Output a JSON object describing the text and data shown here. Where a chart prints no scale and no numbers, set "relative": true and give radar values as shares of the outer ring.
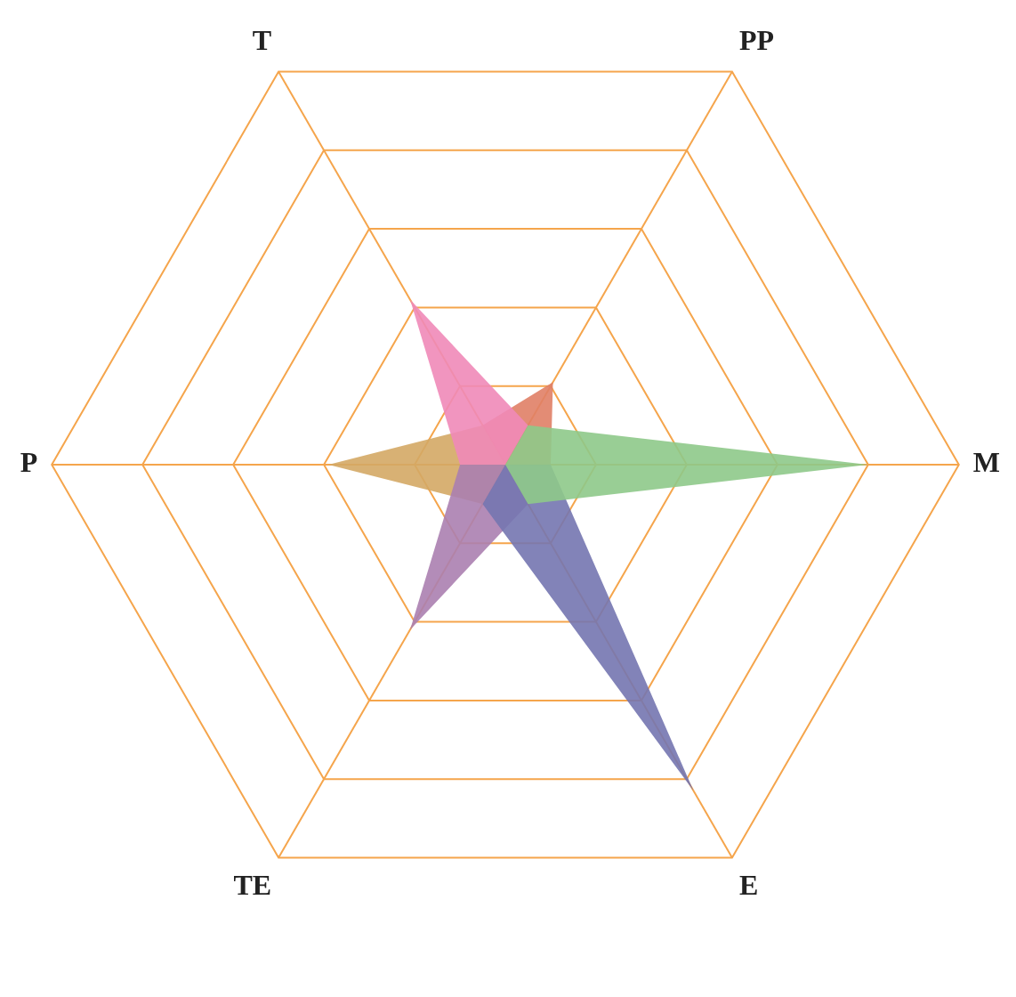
{
  "chart_data": {
    "type": "radar",
    "relative": true,
    "categories": [
      "T",
      "PP",
      "M",
      "E",
      "TE",
      "P"
    ],
    "grid": true,
    "series": [
      {
        "color": "#8ec98a",
        "values": [
          0,
          0.1,
          0.8,
          0.1,
          0,
          0
        ]
      },
      {
        "color": "#f08ab8",
        "values": [
          0.42,
          0.1,
          0,
          0,
          0,
          0.1
        ]
      },
      {
        "color": "#e07f66",
        "values": [
          0.1,
          0.21,
          0.1,
          0,
          0,
          0
        ]
      },
      {
        "color": "#7476b0",
        "values": [
          0,
          0,
          0.1,
          0.83,
          0.1,
          0
        ]
      },
      {
        "color": "#ab80b0",
        "values": [
          0,
          0,
          0,
          0.1,
          0.42,
          0.1
        ]
      },
      {
        "color": "#d4a865",
        "values": [
          0.1,
          0,
          0,
          0,
          0.1,
          0.39
        ]
      }
    ]
  }
}
